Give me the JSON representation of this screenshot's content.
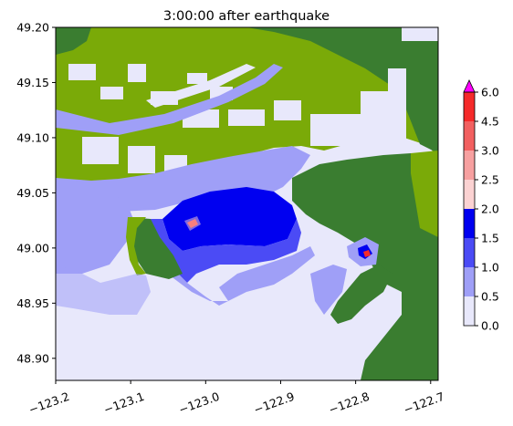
{
  "chart_data": {
    "type": "heatmap",
    "title": "3:00:00 after earthquake",
    "xlabel": "",
    "ylabel": "",
    "xlim": [
      -123.2,
      -122.69
    ],
    "ylim": [
      48.88,
      49.2
    ],
    "x_ticks": [
      -123.2,
      -123.1,
      -123.0,
      -122.9,
      -122.8,
      -122.7
    ],
    "x_tick_labels": [
      "−123.2",
      "−123.1",
      "−123.0",
      "−122.9",
      "−122.8",
      "−122.7"
    ],
    "y_ticks": [
      48.9,
      48.95,
      49.0,
      49.05,
      49.1,
      49.15,
      49.2
    ],
    "y_tick_labels": [
      "48.90",
      "48.95",
      "49.00",
      "49.05",
      "49.10",
      "49.15",
      "49.20"
    ],
    "colorbar": {
      "levels": [
        0.0,
        0.5,
        1.0,
        1.5,
        2.0,
        2.5,
        3.0,
        4.5,
        6.0
      ],
      "labels": [
        "0.0",
        "0.5",
        "1.0",
        "1.5",
        "2.0",
        "2.5",
        "3.0",
        "4.5",
        "6.0"
      ],
      "colors": [
        "#e8e8fb",
        "#9f9ff7",
        "#4b4bf5",
        "#0000f0",
        "#fbd2d2",
        "#f7a0a0",
        "#f26060",
        "#f52a2a"
      ],
      "extend_color": "#ff00ff",
      "extend": "max"
    },
    "colors": {
      "land_high": "#3a7d30",
      "land_low": "#7aaa08",
      "dry_land": "#e6e6fa"
    },
    "grid": false,
    "legend": "colorbar-right"
  }
}
